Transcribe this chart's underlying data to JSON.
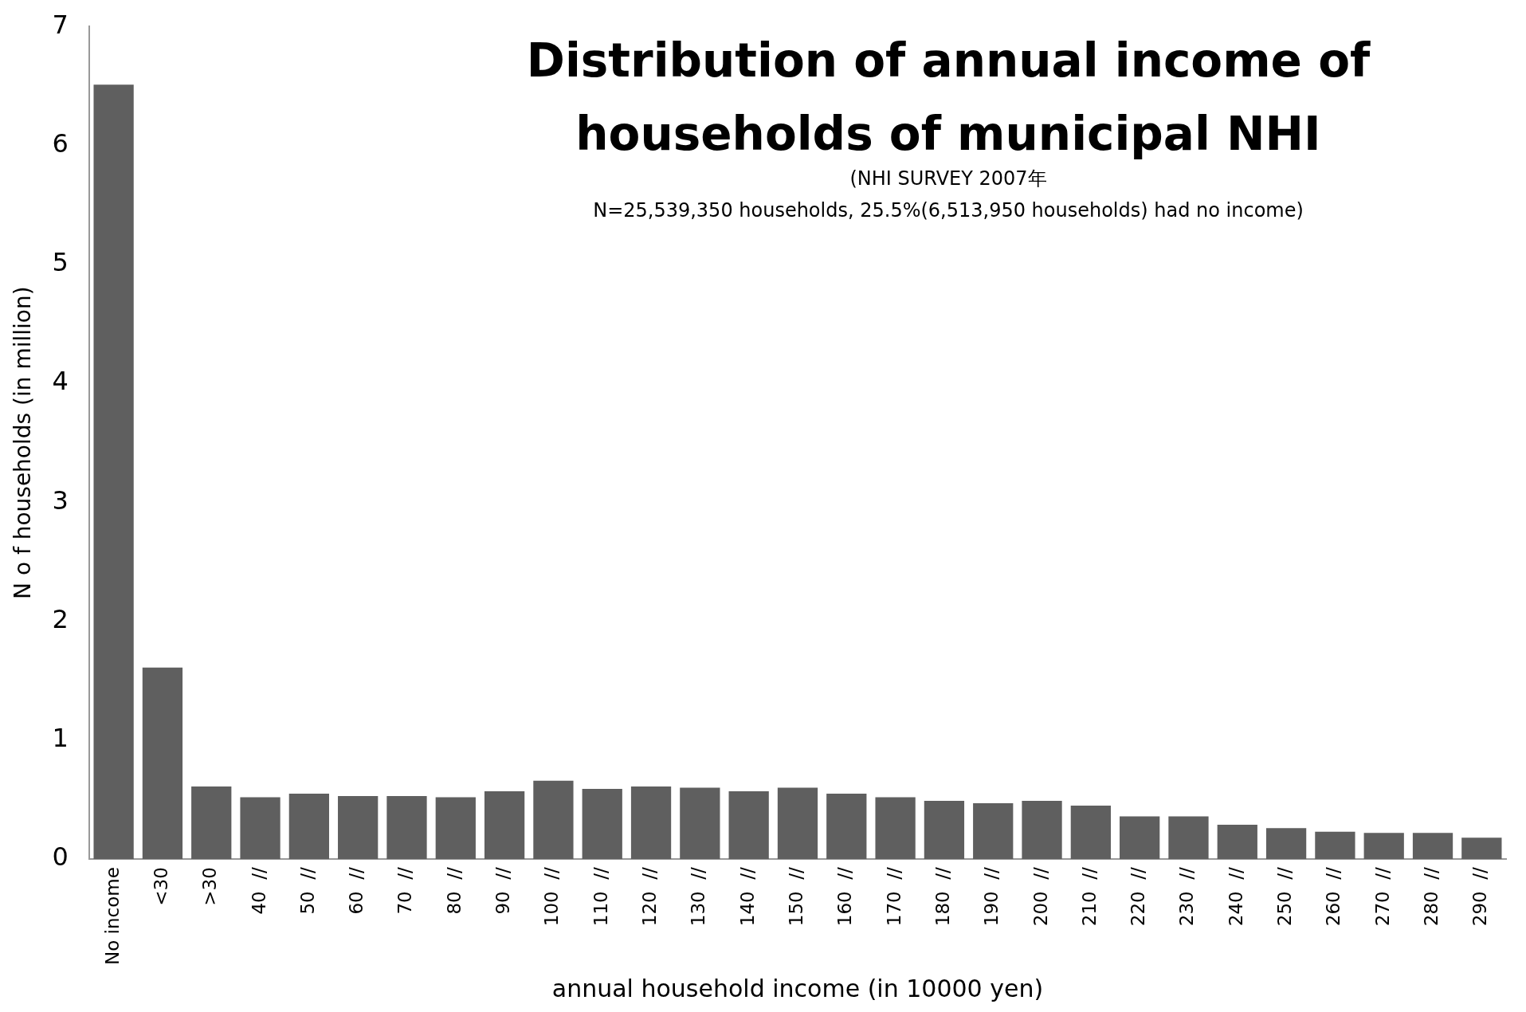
{
  "chart_data": {
    "type": "bar",
    "title": "Distribution of annual income of households of municipal NHI",
    "subtitle": "(NHI SURVEY 2007年",
    "annotations": [
      "N=25,539,350 households,  25.5%(6,513,950 households)  had no income)"
    ],
    "xlabel": "annual household income (in 10000 yen)",
    "ylabel": "N o f households (in million)",
    "categories": [
      "No income",
      "<30",
      ">30",
      "40  //",
      "50  //",
      "60  //",
      "70  //",
      "80  //",
      "90  //",
      "100  //",
      "110  //",
      "120  //",
      "130  //",
      "140  //",
      "150  //",
      "160  //",
      "170  //",
      "180  //",
      "190  //",
      "200  //",
      "210  //",
      "220  //",
      "230  //",
      "240  //",
      "250  //",
      "260  //",
      "270  //",
      "280  //",
      "290  //"
    ],
    "values": [
      6.51,
      1.61,
      0.61,
      0.52,
      0.55,
      0.53,
      0.53,
      0.52,
      0.57,
      0.66,
      0.59,
      0.61,
      0.6,
      0.57,
      0.6,
      0.55,
      0.52,
      0.49,
      0.47,
      0.49,
      0.45,
      0.36,
      0.36,
      0.29,
      0.26,
      0.23,
      0.22,
      0.22,
      0.18
    ],
    "color": "#5f5f5f",
    "ylim": [
      0,
      7
    ],
    "yticks": [
      0,
      1,
      2,
      3,
      4,
      5,
      6,
      7
    ],
    "grid": false,
    "legend": false
  }
}
